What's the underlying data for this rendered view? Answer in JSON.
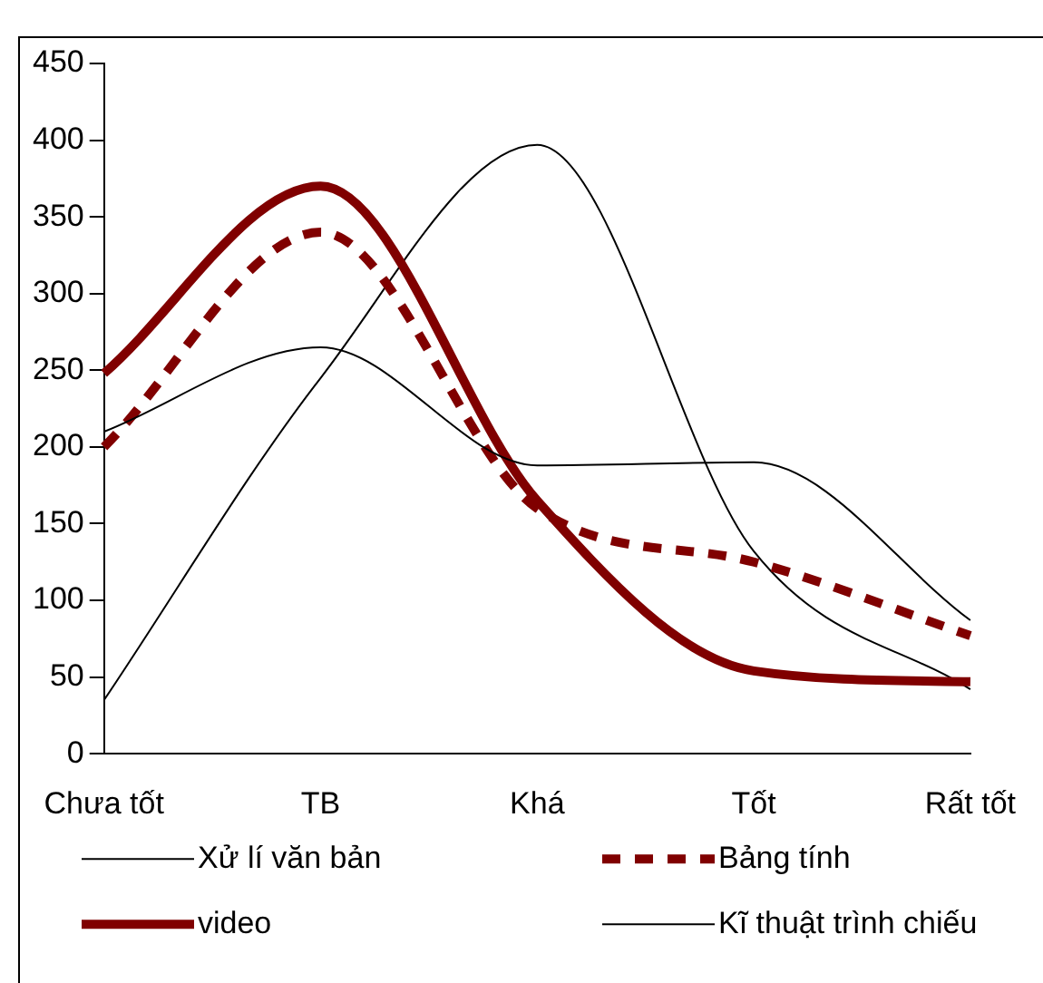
{
  "chart_data": {
    "type": "line",
    "categories": [
      "Chưa tốt",
      "TB",
      "Khá",
      "Tốt",
      "Rất tốt"
    ],
    "series": [
      {
        "name": "Xử lí văn bản",
        "color": "#000000",
        "values": [
          210,
          265,
          188,
          190,
          87
        ],
        "line_style": "solid"
      },
      {
        "name": "Bảng tính",
        "color": "#800000",
        "values": [
          200,
          340,
          160,
          125,
          77
        ],
        "line_style": "dashed"
      },
      {
        "name": "video",
        "color": "#800000",
        "values": [
          248,
          370,
          165,
          54,
          47
        ],
        "line_style": "solid"
      },
      {
        "name": "Kĩ thuật trình chiếu",
        "color": "#000000",
        "values": [
          35,
          245,
          397,
          132,
          42
        ],
        "line_style": "solid"
      }
    ],
    "ylim": [
      0,
      450
    ],
    "yticks": [
      0,
      50,
      100,
      150,
      200,
      250,
      300,
      350,
      400,
      450
    ],
    "grid": false,
    "legend": "bottom",
    "marker": "none"
  }
}
